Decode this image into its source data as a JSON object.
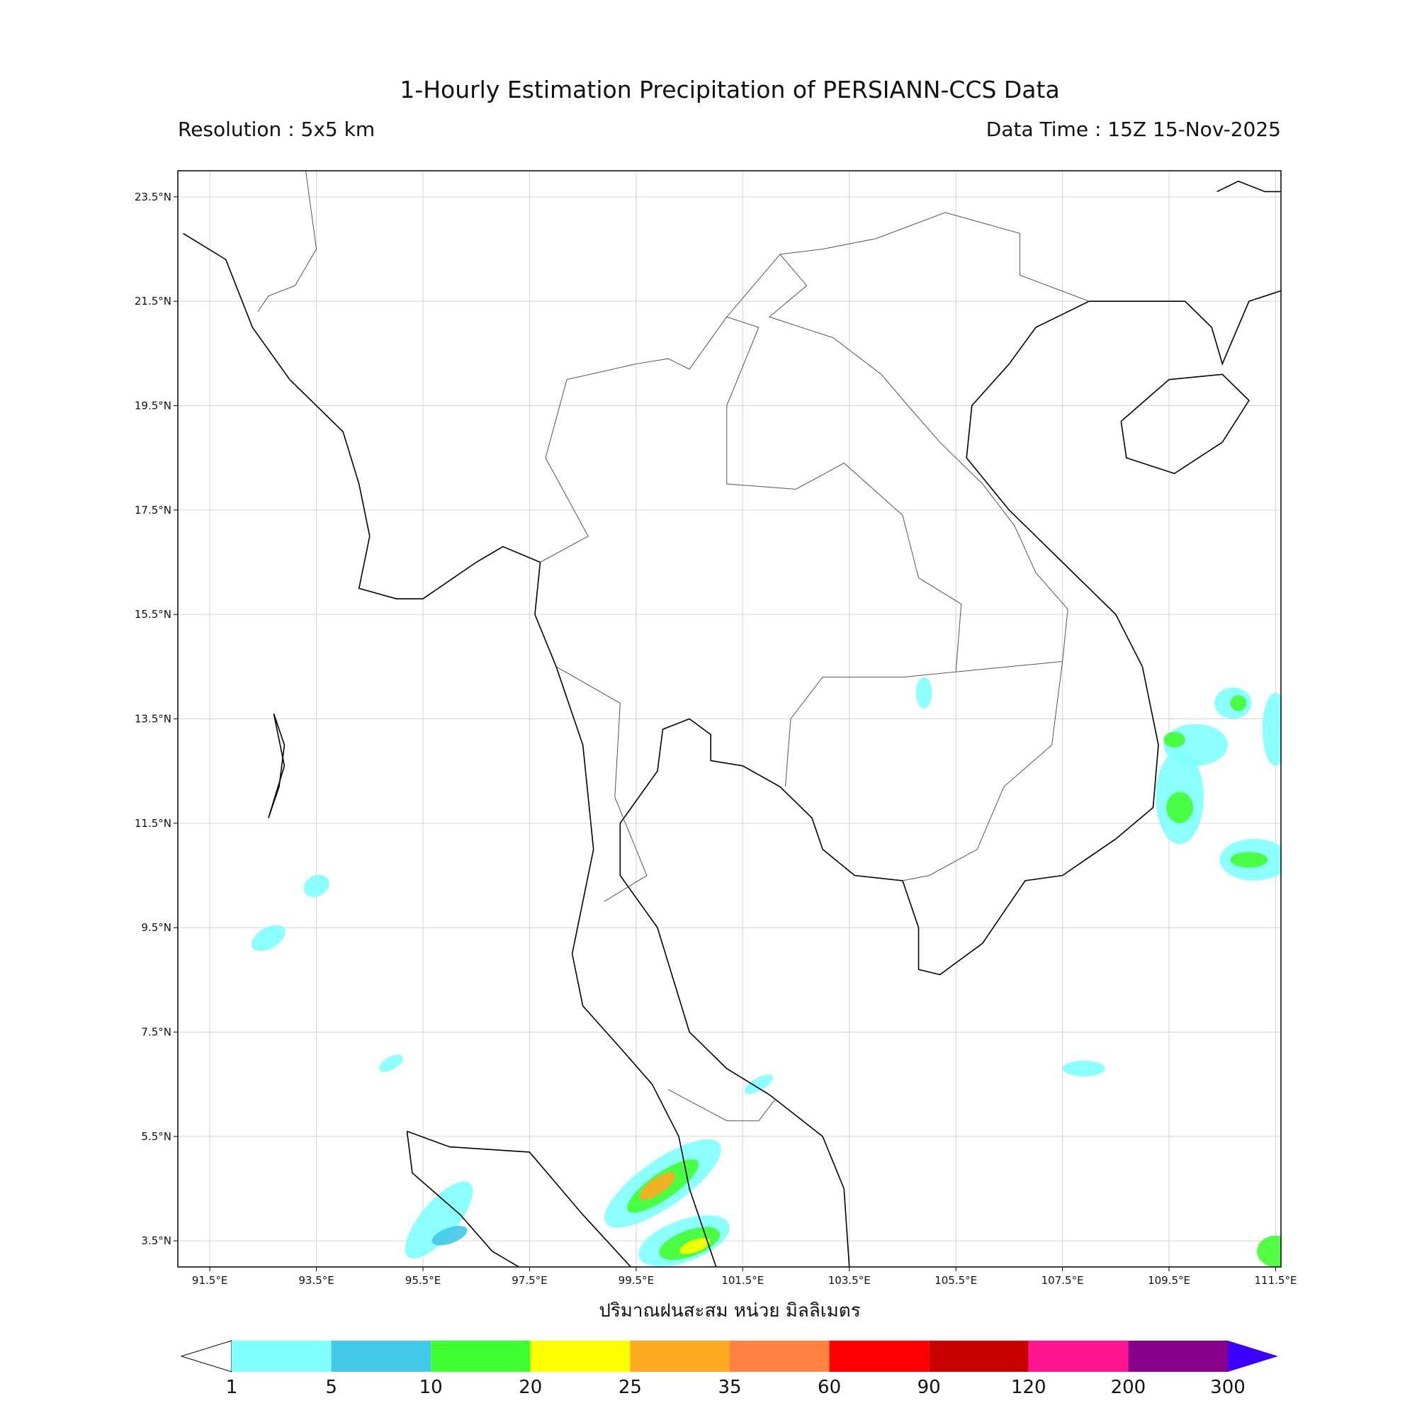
{
  "title": "1-Hourly Estimation Precipitation of PERSIANN-CCS Data",
  "subtitle_left": "Resolution : 5x5 km",
  "subtitle_right": "Data Time : 15Z 15-Nov-2025",
  "xlabel": "ปริมาณฝนสะสม หน่วย มิลลิเมตร",
  "map": {
    "xlim": [
      90.9,
      111.6
    ],
    "ylim": [
      3.0,
      24.0
    ],
    "grid": true,
    "xticks": [
      {
        "value": 91.5,
        "label": "91.5°E"
      },
      {
        "value": 93.5,
        "label": "93.5°E"
      },
      {
        "value": 95.5,
        "label": "95.5°E"
      },
      {
        "value": 97.5,
        "label": "97.5°E"
      },
      {
        "value": 99.5,
        "label": "99.5°E"
      },
      {
        "value": 101.5,
        "label": "101.5°E"
      },
      {
        "value": 103.5,
        "label": "103.5°E"
      },
      {
        "value": 105.5,
        "label": "105.5°E"
      },
      {
        "value": 107.5,
        "label": "107.5°E"
      },
      {
        "value": 109.5,
        "label": "109.5°E"
      },
      {
        "value": 111.5,
        "label": "111.5°E"
      }
    ],
    "yticks": [
      {
        "value": 3.5,
        "label": "3.5°N"
      },
      {
        "value": 5.5,
        "label": "5.5°N"
      },
      {
        "value": 7.5,
        "label": "7.5°N"
      },
      {
        "value": 9.5,
        "label": "9.5°N"
      },
      {
        "value": 11.5,
        "label": "11.5°N"
      },
      {
        "value": 13.5,
        "label": "13.5°N"
      },
      {
        "value": 15.5,
        "label": "15.5°N"
      },
      {
        "value": 17.5,
        "label": "17.5°N"
      },
      {
        "value": 19.5,
        "label": "19.5°N"
      },
      {
        "value": 21.5,
        "label": "21.5°N"
      },
      {
        "value": 23.5,
        "label": "23.5°N"
      }
    ]
  },
  "colorbar": {
    "levels": [
      1,
      5,
      10,
      20,
      25,
      35,
      60,
      90,
      120,
      200,
      300
    ],
    "colors": [
      "#80ffff",
      "#40c8e8",
      "#40ff30",
      "#ffff00",
      "#ffa820",
      "#ff8040",
      "#ff0000",
      "#c80000",
      "#ff1493",
      "#8b008b"
    ],
    "under_color": "#ffffff",
    "over_color": "#3c00ff"
  }
}
